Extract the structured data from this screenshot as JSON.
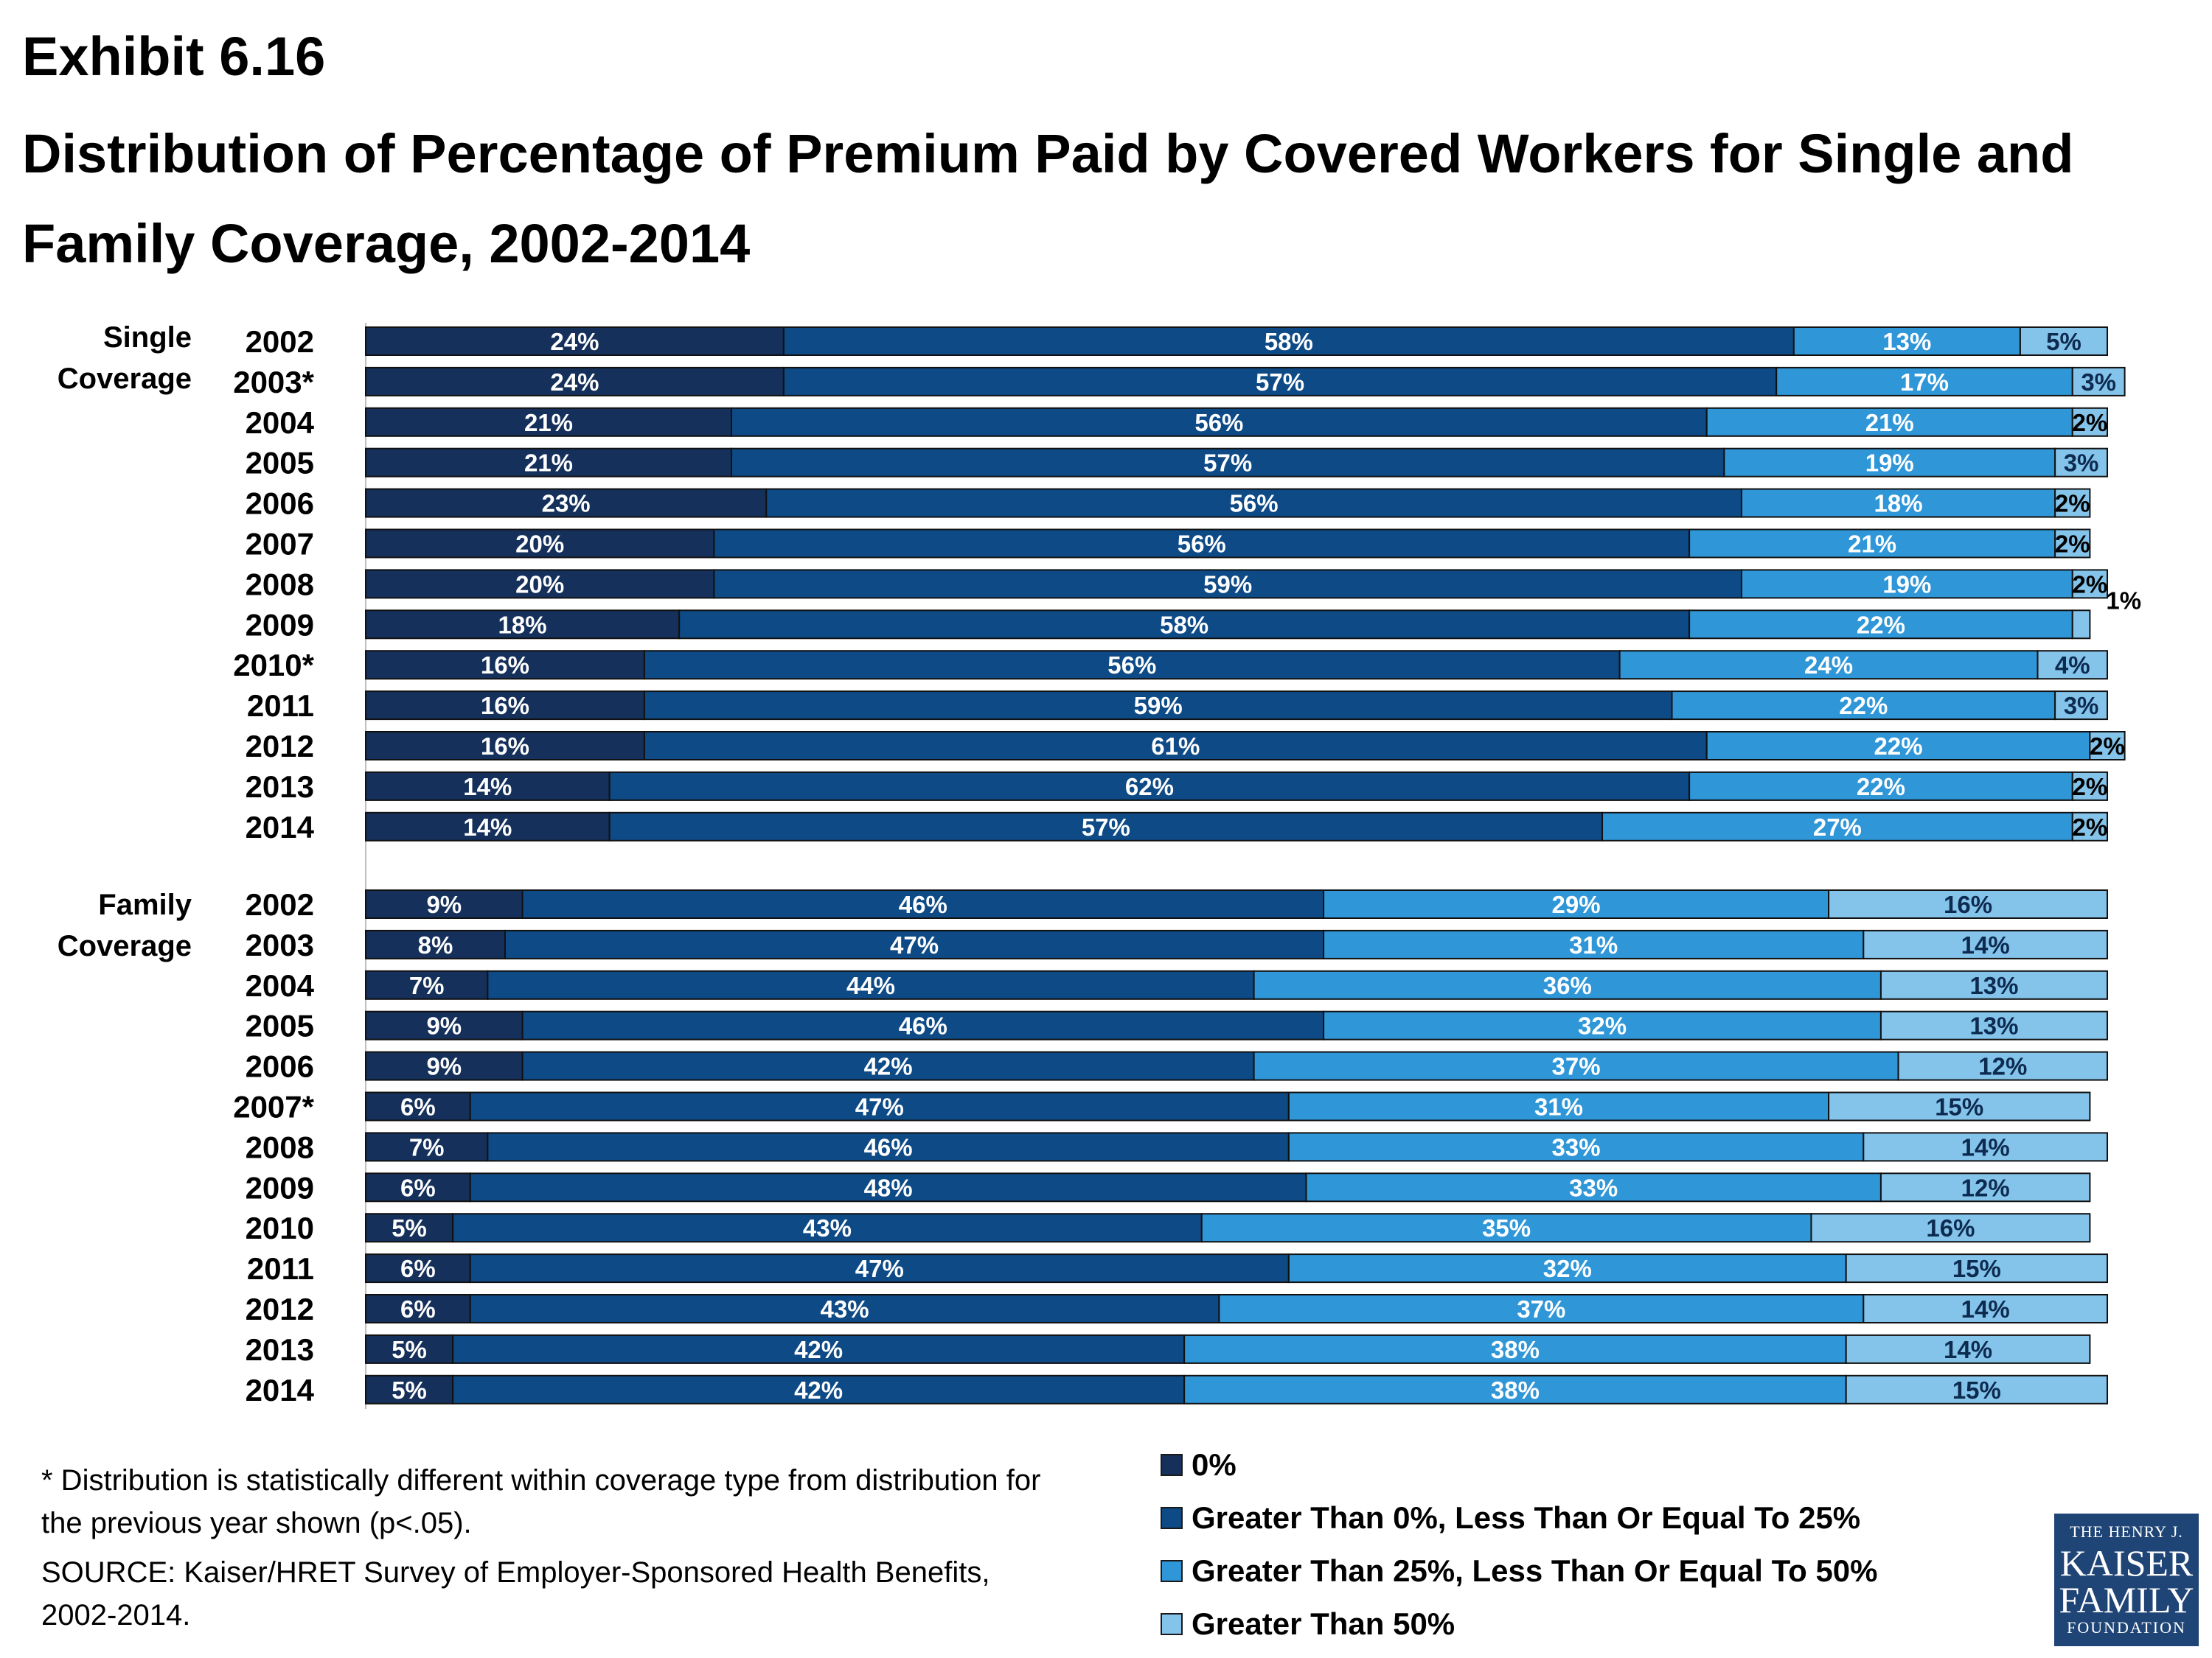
{
  "exhibit": "Exhibit 6.16",
  "title": "Distribution of Percentage of Premium Paid by Covered Workers for Single and Family Coverage, 2002-2014",
  "footnote": "* Distribution is statistically different within coverage type from distribution for the previous year shown (p<.05).",
  "source": "SOURCE:  Kaiser/HRET Survey of Employer-Sponsored Health Benefits, 2002-2014.",
  "logo": {
    "line1": "THE HENRY J.",
    "line2": "KAISER",
    "line3": "FAMILY",
    "line4": "FOUNDATION"
  },
  "chart_data": {
    "type": "bar",
    "orientation": "horizontal",
    "stacked": true,
    "xlim": [
      0,
      100
    ],
    "series": [
      {
        "name": "0%",
        "color": "#15305a"
      },
      {
        "name": "Greater Than 0%, Less Than Or Equal To 25%",
        "color": "#0e4a86"
      },
      {
        "name": "Greater Than 25%, Less Than Or Equal To 50%",
        "color": "#2f96d8"
      },
      {
        "name": "Greater Than 50%",
        "color": "#84c3ea"
      }
    ],
    "groups": [
      {
        "label": "Single Coverage",
        "label_lines": [
          "Single",
          "Coverage"
        ],
        "rows": [
          {
            "year": "2002",
            "values": [
              24,
              58,
              13,
              5
            ]
          },
          {
            "year": "2003*",
            "values": [
              24,
              57,
              17,
              3
            ]
          },
          {
            "year": "2004",
            "values": [
              21,
              56,
              21,
              2
            ]
          },
          {
            "year": "2005",
            "values": [
              21,
              57,
              19,
              3
            ]
          },
          {
            "year": "2006",
            "values": [
              23,
              56,
              18,
              2
            ]
          },
          {
            "year": "2007",
            "values": [
              20,
              56,
              21,
              2
            ]
          },
          {
            "year": "2008",
            "values": [
              20,
              59,
              19,
              2
            ]
          },
          {
            "year": "2009",
            "values": [
              18,
              58,
              22,
              1
            ]
          },
          {
            "year": "2010*",
            "values": [
              16,
              56,
              24,
              4
            ]
          },
          {
            "year": "2011",
            "values": [
              16,
              59,
              22,
              3
            ]
          },
          {
            "year": "2012",
            "values": [
              16,
              61,
              22,
              2
            ]
          },
          {
            "year": "2013",
            "values": [
              14,
              62,
              22,
              2
            ]
          },
          {
            "year": "2014",
            "values": [
              14,
              57,
              27,
              2
            ]
          }
        ]
      },
      {
        "label": "Family Coverage",
        "label_lines": [
          "Family",
          "Coverage"
        ],
        "rows": [
          {
            "year": "2002",
            "values": [
              9,
              46,
              29,
              16
            ]
          },
          {
            "year": "2003",
            "values": [
              8,
              47,
              31,
              14
            ]
          },
          {
            "year": "2004",
            "values": [
              7,
              44,
              36,
              13
            ]
          },
          {
            "year": "2005",
            "values": [
              9,
              46,
              32,
              13
            ]
          },
          {
            "year": "2006",
            "values": [
              9,
              42,
              37,
              12
            ]
          },
          {
            "year": "2007*",
            "values": [
              6,
              47,
              31,
              15
            ]
          },
          {
            "year": "2008",
            "values": [
              7,
              46,
              33,
              14
            ]
          },
          {
            "year": "2009",
            "values": [
              6,
              48,
              33,
              12
            ]
          },
          {
            "year": "2010",
            "values": [
              5,
              43,
              35,
              16
            ]
          },
          {
            "year": "2011",
            "values": [
              6,
              47,
              32,
              15
            ]
          },
          {
            "year": "2012",
            "values": [
              6,
              43,
              37,
              14
            ]
          },
          {
            "year": "2013",
            "values": [
              5,
              42,
              38,
              14
            ]
          },
          {
            "year": "2014",
            "values": [
              5,
              42,
              38,
              15
            ]
          }
        ]
      }
    ]
  }
}
